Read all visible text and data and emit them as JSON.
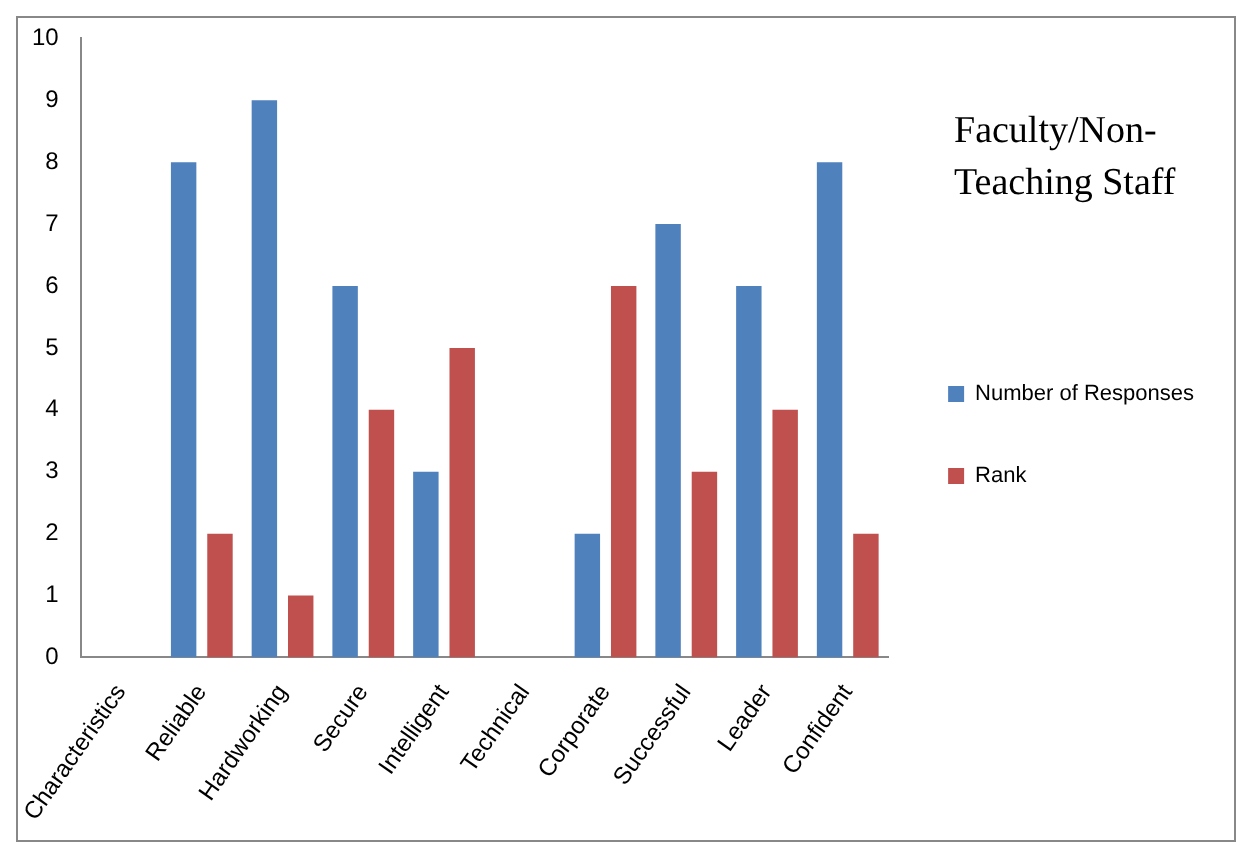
{
  "chart_data": {
    "type": "bar",
    "title": "Faculty/Non-Teaching Staff",
    "categories": [
      "Characteristics",
      "Reliable",
      "Hardworking",
      "Secure",
      "Intelligent",
      "Technical",
      "Corporate",
      "Successful",
      "Leader",
      "Confident"
    ],
    "series": [
      {
        "name": "Number of Responses",
        "color": "#4f81bd",
        "values": [
          null,
          8,
          9,
          6,
          3,
          null,
          2,
          7,
          6,
          8
        ]
      },
      {
        "name": "Rank",
        "color": "#c0504d",
        "values": [
          null,
          2,
          1,
          4,
          5,
          null,
          6,
          3,
          4,
          2
        ]
      }
    ],
    "ylim": [
      0,
      10
    ],
    "yticks": [
      0,
      1,
      2,
      3,
      4,
      5,
      6,
      7,
      8,
      9,
      10
    ],
    "grid": false,
    "legend": "right"
  }
}
